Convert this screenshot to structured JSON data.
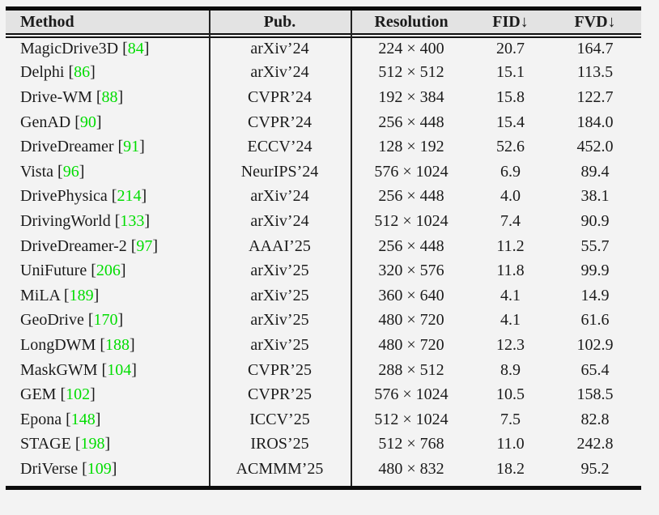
{
  "page": {
    "background": "#f3f3f3"
  },
  "table": {
    "header": {
      "method": "Method",
      "pub": "Pub.",
      "resolution": "Resolution",
      "fid": "FID↓",
      "fvd": "FVD↓"
    },
    "citation": {
      "open_bracket": "[",
      "close_bracket": "]",
      "color": "#00dd00"
    },
    "rows": [
      {
        "method": "MagicDrive3D",
        "cite": "84",
        "pub": "arXiv’24",
        "resolution": "224 × 400",
        "fid": "20.7",
        "fvd": "164.7"
      },
      {
        "method": "Delphi",
        "cite": "86",
        "pub": "arXiv’24",
        "resolution": "512 × 512",
        "fid": "15.1",
        "fvd": "113.5"
      },
      {
        "method": "Drive-WM",
        "cite": "88",
        "pub": "CVPR’24",
        "resolution": "192 × 384",
        "fid": "15.8",
        "fvd": "122.7"
      },
      {
        "method": "GenAD",
        "cite": "90",
        "pub": "CVPR’24",
        "resolution": "256 × 448",
        "fid": "15.4",
        "fvd": "184.0"
      },
      {
        "method": "DriveDreamer",
        "cite": "91",
        "pub": "ECCV’24",
        "resolution": "128 × 192",
        "fid": "52.6",
        "fvd": "452.0"
      },
      {
        "method": "Vista",
        "cite": "96",
        "pub": "NeurIPS’24",
        "resolution": "576 × 1024",
        "fid": "6.9",
        "fvd": "89.4"
      },
      {
        "method": "DrivePhysica",
        "cite": "214",
        "pub": "arXiv’24",
        "resolution": "256 × 448",
        "fid": "4.0",
        "fvd": "38.1"
      },
      {
        "method": "DrivingWorld",
        "cite": "133",
        "pub": "arXiv’24",
        "resolution": "512 × 1024",
        "fid": "7.4",
        "fvd": "90.9"
      },
      {
        "method": "DriveDreamer-2",
        "cite": "97",
        "pub": "AAAI’25",
        "resolution": "256 × 448",
        "fid": "11.2",
        "fvd": "55.7"
      },
      {
        "method": "UniFuture",
        "cite": "206",
        "pub": "arXiv’25",
        "resolution": "320 × 576",
        "fid": "11.8",
        "fvd": "99.9"
      },
      {
        "method": "MiLA",
        "cite": "189",
        "pub": "arXiv’25",
        "resolution": "360 × 640",
        "fid": "4.1",
        "fvd": "14.9"
      },
      {
        "method": "GeoDrive",
        "cite": "170",
        "pub": "arXiv’25",
        "resolution": "480 × 720",
        "fid": "4.1",
        "fvd": "61.6"
      },
      {
        "method": "LongDWM",
        "cite": "188",
        "pub": "arXiv’25",
        "resolution": "480 × 720",
        "fid": "12.3",
        "fvd": "102.9"
      },
      {
        "method": "MaskGWM",
        "cite": "104",
        "pub": "CVPR’25",
        "resolution": "288 × 512",
        "fid": "8.9",
        "fvd": "65.4"
      },
      {
        "method": "GEM",
        "cite": "102",
        "pub": "CVPR’25",
        "resolution": "576 × 1024",
        "fid": "10.5",
        "fvd": "158.5"
      },
      {
        "method": "Epona",
        "cite": "148",
        "pub": "ICCV’25",
        "resolution": "512 × 1024",
        "fid": "7.5",
        "fvd": "82.8"
      },
      {
        "method": "STAGE",
        "cite": "198",
        "pub": "IROS’25",
        "resolution": "512 × 768",
        "fid": "11.0",
        "fvd": "242.8"
      },
      {
        "method": "DriVerse",
        "cite": "109",
        "pub": "ACMMM’25",
        "resolution": "480 × 832",
        "fid": "18.2",
        "fvd": "95.2"
      }
    ]
  }
}
